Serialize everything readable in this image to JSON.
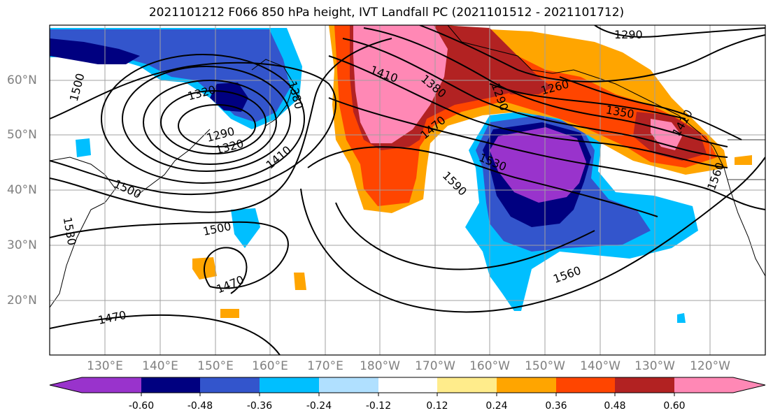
{
  "title": "2021101212 F066 850 hPa height, IVT Landfall PC (2021101512 - 2021101712)",
  "lon_labels": [
    "130°E",
    "140°E",
    "150°E",
    "160°E",
    "170°E",
    "180°W",
    "170°W",
    "160°W",
    "150°W",
    "140°W",
    "130°W",
    "120°W"
  ],
  "lat_labels": [
    "60°N",
    "50°N",
    "40°N",
    "30°N",
    "20°N"
  ],
  "contour_labels": [
    "1500",
    "1500",
    "1530",
    "1500",
    "1470",
    "1470",
    "1320",
    "1290",
    "1320",
    "1410",
    "1380",
    "1410",
    "1380",
    "1470",
    "1290",
    "1260",
    "1350",
    "1530",
    "1590",
    "1560",
    "1560",
    "1410",
    "1290"
  ],
  "colorbar": {
    "tick_labels": [
      "-0.60",
      "-0.48",
      "-0.36",
      "-0.24",
      "-0.12",
      "0.12",
      "0.24",
      "0.36",
      "0.48",
      "0.60"
    ],
    "colors": [
      "#9933cc",
      "#000080",
      "#3355cc",
      "#00bfff",
      "#b0e0ff",
      "#ffffff",
      "#ffec8b",
      "#ffa500",
      "#ff4500",
      "#b22222",
      "#ff88b5"
    ]
  },
  "fill_colors": {
    "purple": "#9933cc",
    "navy": "#000080",
    "royal": "#3355cc",
    "cyan": "#00bfff",
    "lightblue": "#b0e0ff",
    "yellow": "#ffec8b",
    "orange": "#ffa500",
    "redorange": "#ff4500",
    "firebrick": "#b22222",
    "pink": "#ff88b5"
  }
}
